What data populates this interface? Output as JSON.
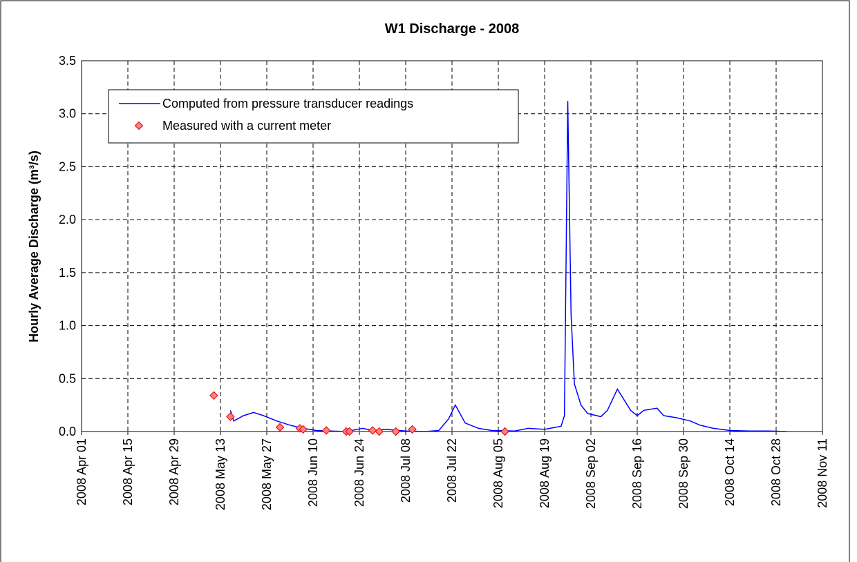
{
  "chart_data": {
    "type": "line-scatter",
    "title": "W1 Discharge - 2008",
    "y_label": "Hourly Average Discharge (m³/s)",
    "xlim": [
      "2008-04-01",
      "2008-11-11"
    ],
    "xticks": [
      {
        "value": "2008-04-01",
        "label": "2008 Apr 01"
      },
      {
        "value": "2008-04-15",
        "label": "2008 Apr 15"
      },
      {
        "value": "2008-04-29",
        "label": "2008 Apr 29"
      },
      {
        "value": "2008-05-13",
        "label": "2008 May 13"
      },
      {
        "value": "2008-05-27",
        "label": "2008 May 27"
      },
      {
        "value": "2008-06-10",
        "label": "2008 Jun 10"
      },
      {
        "value": "2008-06-24",
        "label": "2008 Jun 24"
      },
      {
        "value": "2008-07-08",
        "label": "2008 Jul 08"
      },
      {
        "value": "2008-07-22",
        "label": "2008 Jul 22"
      },
      {
        "value": "2008-08-05",
        "label": "2008 Aug 05"
      },
      {
        "value": "2008-08-19",
        "label": "2008 Aug 19"
      },
      {
        "value": "2008-09-02",
        "label": "2008 Sep 02"
      },
      {
        "value": "2008-09-16",
        "label": "2008 Sep 16"
      },
      {
        "value": "2008-09-30",
        "label": "2008 Sep 30"
      },
      {
        "value": "2008-10-14",
        "label": "2008 Oct 14"
      },
      {
        "value": "2008-10-28",
        "label": "2008 Oct 28"
      },
      {
        "value": "2008-11-11",
        "label": "2008 Nov 11"
      }
    ],
    "ylim": [
      0,
      3.5
    ],
    "yticks": [
      {
        "value": 0,
        "label": "0.0"
      },
      0.5,
      {
        "value": 1,
        "label": "1.0"
      },
      1.5,
      {
        "value": 2,
        "label": "2.0"
      },
      2.5,
      {
        "value": 3,
        "label": "3.0"
      },
      3.5
    ],
    "grid": true,
    "legend": "upper left",
    "series": [
      {
        "name": "Computed from pressure transducer readings",
        "kind": "line",
        "color": "#0000ff",
        "x": [
          "2008-05-16",
          "2008-05-17",
          "2008-05-20",
          "2008-05-23",
          "2008-05-26",
          "2008-05-30",
          "2008-06-03",
          "2008-06-07",
          "2008-06-11",
          "2008-06-15",
          "2008-06-20",
          "2008-06-25",
          "2008-06-28",
          "2008-07-02",
          "2008-07-08",
          "2008-07-14",
          "2008-07-18",
          "2008-07-21",
          "2008-07-23",
          "2008-07-26",
          "2008-07-30",
          "2008-08-03",
          "2008-08-10",
          "2008-08-14",
          "2008-08-19",
          "2008-08-24",
          "2008-08-25",
          "2008-08-26",
          "2008-08-27",
          "2008-08-28",
          "2008-08-30",
          "2008-09-01",
          "2008-09-05",
          "2008-09-07",
          "2008-09-10",
          "2008-09-12",
          "2008-09-14",
          "2008-09-16",
          "2008-09-18",
          "2008-09-22",
          "2008-09-24",
          "2008-09-28",
          "2008-10-02",
          "2008-10-05",
          "2008-10-09",
          "2008-10-14",
          "2008-10-20",
          "2008-10-26",
          "2008-10-31"
        ],
        "values": [
          0.2,
          0.1,
          0.15,
          0.18,
          0.15,
          0.1,
          0.06,
          0.03,
          0.01,
          0.005,
          0,
          0.03,
          0.01,
          0.02,
          0.005,
          0,
          0.01,
          0.12,
          0.25,
          0.08,
          0.03,
          0.01,
          0.005,
          0.03,
          0.02,
          0.05,
          0.15,
          3.12,
          1.1,
          0.45,
          0.25,
          0.17,
          0.14,
          0.2,
          0.4,
          0.3,
          0.2,
          0.15,
          0.2,
          0.22,
          0.15,
          0.13,
          0.1,
          0.06,
          0.03,
          0.01,
          0.005,
          0.005,
          0
        ]
      },
      {
        "name": "Measured with a current meter",
        "kind": "scatter",
        "color": "#ff8080",
        "x": [
          "2008-05-11",
          "2008-05-16",
          "2008-05-31",
          "2008-06-06",
          "2008-06-07",
          "2008-06-14",
          "2008-06-20",
          "2008-06-21",
          "2008-06-28",
          "2008-06-30",
          "2008-07-05",
          "2008-07-10",
          "2008-08-07"
        ],
        "values": [
          0.34,
          0.14,
          0.04,
          0.03,
          0.02,
          0.01,
          0,
          0,
          0.01,
          0,
          0,
          0.02,
          0
        ]
      }
    ]
  }
}
